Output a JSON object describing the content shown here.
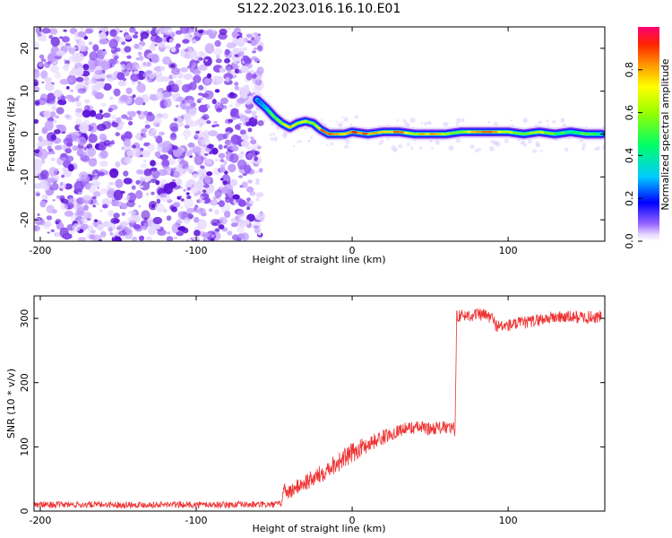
{
  "title": "S122.2023.016.16.10.E01",
  "chart_data": [
    {
      "type": "heatmap",
      "xlabel": "Height of straight line (km)",
      "ylabel": "Frequency (Hz)",
      "xlim": [
        -204,
        162
      ],
      "ylim": [
        -25,
        25
      ],
      "xticks": [
        -200,
        -100,
        0,
        100
      ],
      "yticks": [
        -20,
        -10,
        0,
        10,
        20
      ],
      "grid": false,
      "colorbar": {
        "label": "Normalized spectral amplitude",
        "range": [
          0,
          1
        ],
        "ticks": [
          0.0,
          0.2,
          0.4,
          0.6,
          0.8
        ],
        "tick_labels": [
          "0.0",
          "0.2",
          "0.4",
          "0.6",
          "0.8"
        ]
      },
      "noise_region_x": [
        -204,
        -58
      ],
      "ridge": {
        "x": [
          -61,
          -55,
          -50,
          -45,
          -40,
          -35,
          -30,
          -25,
          -20,
          -15,
          -10,
          -5,
          0,
          10,
          20,
          30,
          40,
          50,
          60,
          70,
          80,
          90,
          100,
          110,
          120,
          130,
          140,
          150,
          160
        ],
        "frequency": [
          8,
          6,
          4,
          2.5,
          1.5,
          2.5,
          3,
          2.5,
          1,
          0,
          0,
          0,
          0.5,
          0,
          0.5,
          0.5,
          0,
          0,
          0,
          0.5,
          0.5,
          0.5,
          0.5,
          0,
          0.5,
          0,
          0.5,
          0,
          0
        ],
        "amplitude": [
          0.2,
          0.4,
          0.6,
          0.7,
          0.8,
          0.7,
          0.75,
          0.6,
          0.9,
          0.95,
          0.9,
          0.85,
          0.95,
          0.9,
          0.8,
          0.9,
          0.7,
          0.9,
          0.7,
          0.6,
          0.9,
          0.9,
          0.7,
          0.6,
          0.75,
          0.55,
          0.5,
          0.55,
          0.5
        ]
      }
    },
    {
      "type": "line",
      "xlabel": "Height of straight line (km)",
      "ylabel": "SNR (10 * v/v)",
      "xlim": [
        -204,
        162
      ],
      "ylim": [
        0,
        335
      ],
      "xticks": [
        -200,
        -100,
        0,
        100
      ],
      "yticks": [
        0,
        100,
        200,
        300
      ],
      "grid": false,
      "color": "#ee3333",
      "series": [
        {
          "x": [
            -204,
            -190,
            -170,
            -150,
            -130,
            -110,
            -90,
            -70,
            -50,
            -45,
            -44,
            -42,
            -40,
            -35,
            -30,
            -25,
            -20,
            -15,
            -10,
            -5,
            0,
            5,
            10,
            15,
            20,
            25,
            30,
            35,
            40,
            45,
            50,
            55,
            60,
            65,
            66,
            67,
            68,
            70,
            75,
            80,
            85,
            90,
            92,
            95,
            100,
            105,
            110,
            115,
            120,
            130,
            140,
            150,
            160
          ],
          "y": [
            10,
            10,
            10,
            10,
            10,
            10,
            10,
            10,
            10,
            12,
            40,
            28,
            30,
            38,
            45,
            50,
            58,
            68,
            75,
            82,
            90,
            98,
            104,
            110,
            115,
            120,
            126,
            129,
            130,
            130,
            128,
            130,
            130,
            128,
            125,
            305,
            305,
            304,
            305,
            306,
            305,
            300,
            290,
            287,
            289,
            291,
            293,
            295,
            298,
            302,
            302,
            302,
            302
          ],
          "noise_amplitude": [
            5,
            5,
            5,
            5,
            5,
            5,
            5,
            5,
            5,
            5,
            10,
            10,
            12,
            12,
            14,
            14,
            14,
            14,
            16,
            16,
            16,
            14,
            14,
            12,
            12,
            10,
            10,
            10,
            10,
            10,
            10,
            10,
            10,
            10,
            10,
            10,
            10,
            10,
            10,
            10,
            10,
            10,
            10,
            10,
            10,
            10,
            10,
            10,
            10,
            10,
            10,
            10,
            10
          ]
        }
      ]
    }
  ]
}
